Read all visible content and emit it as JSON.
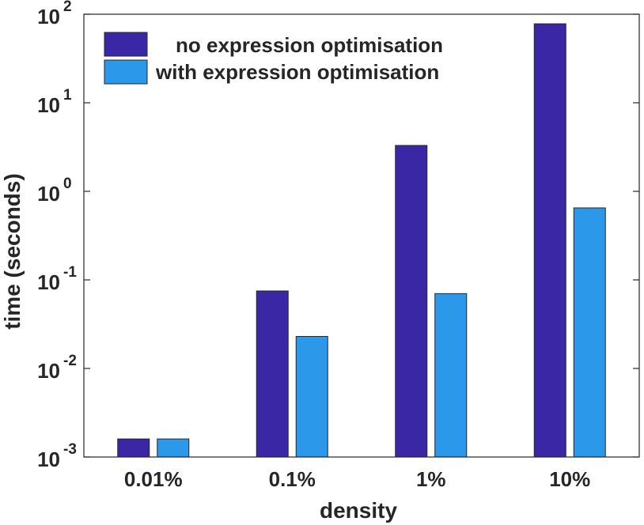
{
  "chart_data": {
    "type": "bar",
    "scale": "log",
    "categories": [
      "0.01%",
      "0.1%",
      "1%",
      "10%"
    ],
    "series": [
      {
        "name": "no expression optimisation",
        "color": "#3a27a6",
        "values": [
          0.0016,
          0.075,
          3.3,
          78
        ]
      },
      {
        "name": "with expression optimisation",
        "color": "#2b98ea",
        "values": [
          0.0016,
          0.023,
          0.07,
          0.65
        ]
      }
    ],
    "xlabel": "density",
    "ylabel": "time (seconds)",
    "ylim": [
      0.001,
      100
    ],
    "yticks": [
      {
        "base": "10",
        "exp": "-3",
        "value": 0.001
      },
      {
        "base": "10",
        "exp": "-2",
        "value": 0.01
      },
      {
        "base": "10",
        "exp": "-1",
        "value": 0.1
      },
      {
        "base": "10",
        "exp": "0",
        "value": 1
      },
      {
        "base": "10",
        "exp": "1",
        "value": 10
      },
      {
        "base": "10",
        "exp": "2",
        "value": 100
      }
    ],
    "legend_position": "top-left",
    "grid": false,
    "box": true
  }
}
